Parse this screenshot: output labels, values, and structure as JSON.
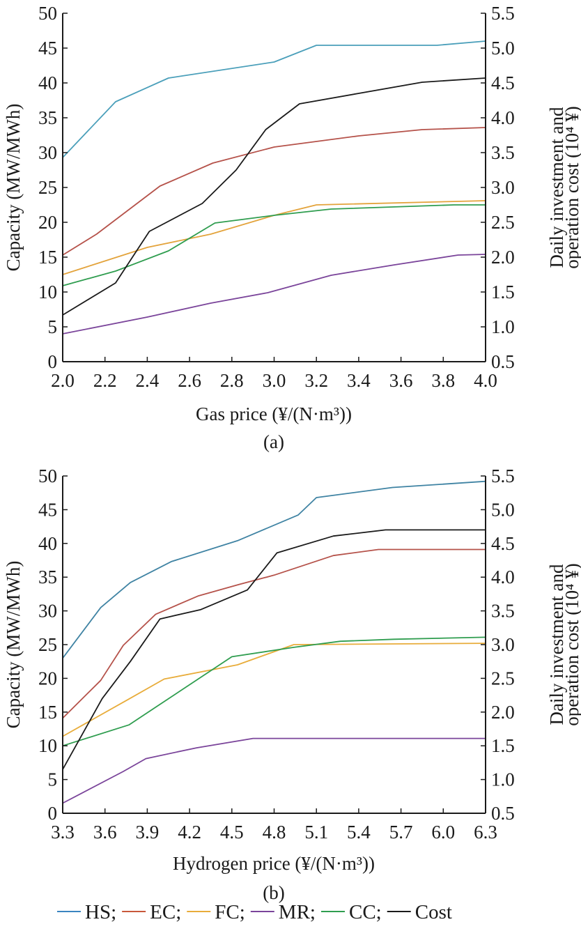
{
  "chart_data": [
    {
      "type": "line",
      "panel_label": "(a)",
      "xlabel": "Gas price (¥/(N·m³))",
      "ylabel": "Capacity (MW/MWh)",
      "y2label_line1": "Daily investment and",
      "y2label_line2": "operation cost (10⁴ ¥)",
      "xlim": [
        2.0,
        4.0
      ],
      "ylim": [
        0,
        50
      ],
      "y2lim": [
        0.5,
        5.5
      ],
      "xticks": [
        "2.0",
        "2.2",
        "2.4",
        "2.6",
        "2.8",
        "3.0",
        "3.2",
        "3.4",
        "3.6",
        "3.8",
        "4.0"
      ],
      "yticks": [
        "0",
        "5",
        "10",
        "15",
        "20",
        "25",
        "30",
        "35",
        "40",
        "45",
        "50"
      ],
      "y2ticks": [
        "0.5",
        "1.0",
        "1.5",
        "2.0",
        "2.5",
        "3.0",
        "3.5",
        "4.0",
        "4.5",
        "5.0",
        "5.5"
      ],
      "grid": false,
      "series": [
        {
          "name": "HS",
          "axis": "left",
          "color": "#4a9fba",
          "x": [
            2.0,
            2.25,
            2.5,
            3.0,
            3.2,
            3.77,
            4.0
          ],
          "y": [
            29.3,
            37.3,
            40.7,
            43.0,
            45.4,
            45.4,
            46.0
          ]
        },
        {
          "name": "EC",
          "axis": "left",
          "color": "#b5524a",
          "x": [
            2.0,
            2.16,
            2.46,
            2.71,
            3.0,
            3.4,
            3.7,
            4.0
          ],
          "y": [
            15.3,
            18.3,
            25.2,
            28.5,
            30.8,
            32.4,
            33.3,
            33.6
          ]
        },
        {
          "name": "FC",
          "axis": "left",
          "color": "#e3a33b",
          "x": [
            2.0,
            2.4,
            2.7,
            3.0,
            3.2,
            4.0
          ],
          "y": [
            12.5,
            16.4,
            18.3,
            21.0,
            22.5,
            23.1
          ]
        },
        {
          "name": "MR",
          "axis": "left",
          "color": "#7a449a",
          "x": [
            2.0,
            2.4,
            2.7,
            2.97,
            3.27,
            3.57,
            3.87,
            4.0
          ],
          "y": [
            4.0,
            6.4,
            8.4,
            9.9,
            12.4,
            13.9,
            15.3,
            15.4
          ]
        },
        {
          "name": "CC",
          "axis": "left",
          "color": "#2f9d4f",
          "x": [
            2.0,
            2.25,
            2.5,
            2.72,
            3.0,
            3.27,
            3.85,
            4.0
          ],
          "y": [
            10.9,
            13.0,
            15.9,
            19.9,
            21.0,
            21.9,
            22.5,
            22.5
          ]
        },
        {
          "name": "Cost",
          "axis": "right",
          "color": "#1a1a1a",
          "x": [
            2.0,
            2.25,
            2.41,
            2.66,
            2.82,
            2.96,
            3.12,
            3.4,
            3.7,
            4.0
          ],
          "y": [
            1.17,
            1.63,
            2.37,
            2.77,
            3.25,
            3.83,
            4.2,
            4.35,
            4.51,
            4.57
          ]
        }
      ]
    },
    {
      "type": "line",
      "panel_label": "(b)",
      "xlabel": "Hydrogen price (¥/(N·m³))",
      "ylabel": "Capacity (MW/MWh)",
      "y2label_line1": "Daily investment and",
      "y2label_line2": "operation cost (10⁴ ¥)",
      "xlim": [
        3.3,
        6.3
      ],
      "ylim": [
        0,
        50
      ],
      "y2lim": [
        0.5,
        5.5
      ],
      "xticks": [
        "3.3",
        "3.6",
        "3.9",
        "4.2",
        "4.5",
        "4.8",
        "5.1",
        "5.4",
        "5.7",
        "6.0",
        "6.3"
      ],
      "yticks": [
        "0",
        "5",
        "10",
        "15",
        "20",
        "25",
        "30",
        "35",
        "40",
        "45",
        "50"
      ],
      "y2ticks": [
        "0.5",
        "1.0",
        "1.5",
        "2.0",
        "2.5",
        "3.0",
        "3.5",
        "4.0",
        "4.5",
        "5.0",
        "5.5"
      ],
      "grid": false,
      "series": [
        {
          "name": "HS",
          "axis": "left",
          "color": "#3f83a3",
          "x": [
            3.3,
            3.57,
            3.78,
            4.07,
            4.54,
            4.97,
            5.1,
            5.64,
            6.3
          ],
          "y": [
            23.0,
            30.5,
            34.2,
            37.3,
            40.4,
            44.2,
            46.8,
            48.3,
            49.2
          ]
        },
        {
          "name": "EC",
          "axis": "left",
          "color": "#b5524a",
          "x": [
            3.3,
            3.57,
            3.73,
            3.96,
            4.26,
            4.55,
            4.8,
            5.22,
            5.54,
            6.3
          ],
          "y": [
            14.1,
            19.7,
            24.9,
            29.5,
            32.2,
            33.9,
            35.3,
            38.2,
            39.1,
            39.1
          ]
        },
        {
          "name": "FC",
          "axis": "left",
          "color": "#e8ac3a",
          "x": [
            3.3,
            3.75,
            4.02,
            4.54,
            4.94,
            6.3
          ],
          "y": [
            11.4,
            16.7,
            19.9,
            22.0,
            25.0,
            25.2
          ]
        },
        {
          "name": "MR",
          "axis": "left",
          "color": "#7a449a",
          "x": [
            3.3,
            3.73,
            3.89,
            4.25,
            4.65,
            6.3
          ],
          "y": [
            1.5,
            6.2,
            8.1,
            9.7,
            11.1,
            11.1
          ]
        },
        {
          "name": "CC",
          "axis": "left",
          "color": "#2f9d4f",
          "x": [
            3.3,
            3.77,
            4.5,
            4.94,
            5.27,
            5.65,
            6.3
          ],
          "y": [
            10.0,
            13.1,
            23.2,
            24.6,
            25.5,
            25.8,
            26.1
          ]
        },
        {
          "name": "Cost",
          "axis": "right",
          "color": "#1a1a1a",
          "x": [
            3.3,
            3.58,
            3.78,
            3.99,
            4.28,
            4.61,
            4.82,
            5.22,
            5.59,
            6.3
          ],
          "y": [
            1.15,
            2.2,
            2.75,
            3.38,
            3.52,
            3.81,
            4.36,
            4.61,
            4.7,
            4.7
          ]
        }
      ]
    }
  ],
  "legend": {
    "placement": "bottom-center",
    "items": [
      {
        "label": "HS;",
        "color": "#3a85c0"
      },
      {
        "label": "EC;",
        "color": "#c8583a"
      },
      {
        "label": "FC;",
        "color": "#e8ac3a"
      },
      {
        "label": "MR;",
        "color": "#7a449a"
      },
      {
        "label": "CC;",
        "color": "#2f9d4f"
      },
      {
        "label": "Cost",
        "color": "#1a1a1a"
      }
    ]
  }
}
